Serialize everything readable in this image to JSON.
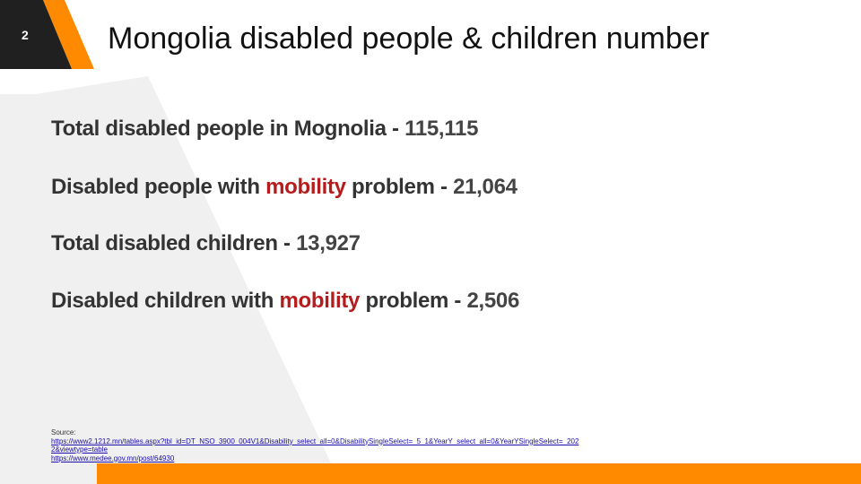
{
  "slide": {
    "page_number": "2",
    "title": "Mongolia disabled people & children number"
  },
  "stats": [
    {
      "label": "Total disabled people in Mognolia - ",
      "value": "115,115"
    },
    {
      "pre": "Disabled people with ",
      "highlight": "mobility",
      "post": " problem - ",
      "value": "21,064"
    },
    {
      "label": "Total disabled children - ",
      "value": "13,927"
    },
    {
      "pre": "Disabled children with ",
      "highlight": "mobility",
      "post": " problem - ",
      "value": "2,506"
    }
  ],
  "source": {
    "label": "Source:",
    "links": [
      "https://www2.1212.mn/tables.aspx?tbl_id=DT_NSO_3900_004V1&Disability_select_all=0&DisabilitySingleSelect=_5_1&YearY_select_all=0&YearYSingleSelect=_202",
      "2&viewtype=table",
      "https://www.medee.gov.mn/post/64930"
    ]
  },
  "colors": {
    "accent_orange": "#FF8A00",
    "dark_block": "#202020",
    "highlight_red": "#B71C1C",
    "bg_gray": "#F0F0F0"
  }
}
